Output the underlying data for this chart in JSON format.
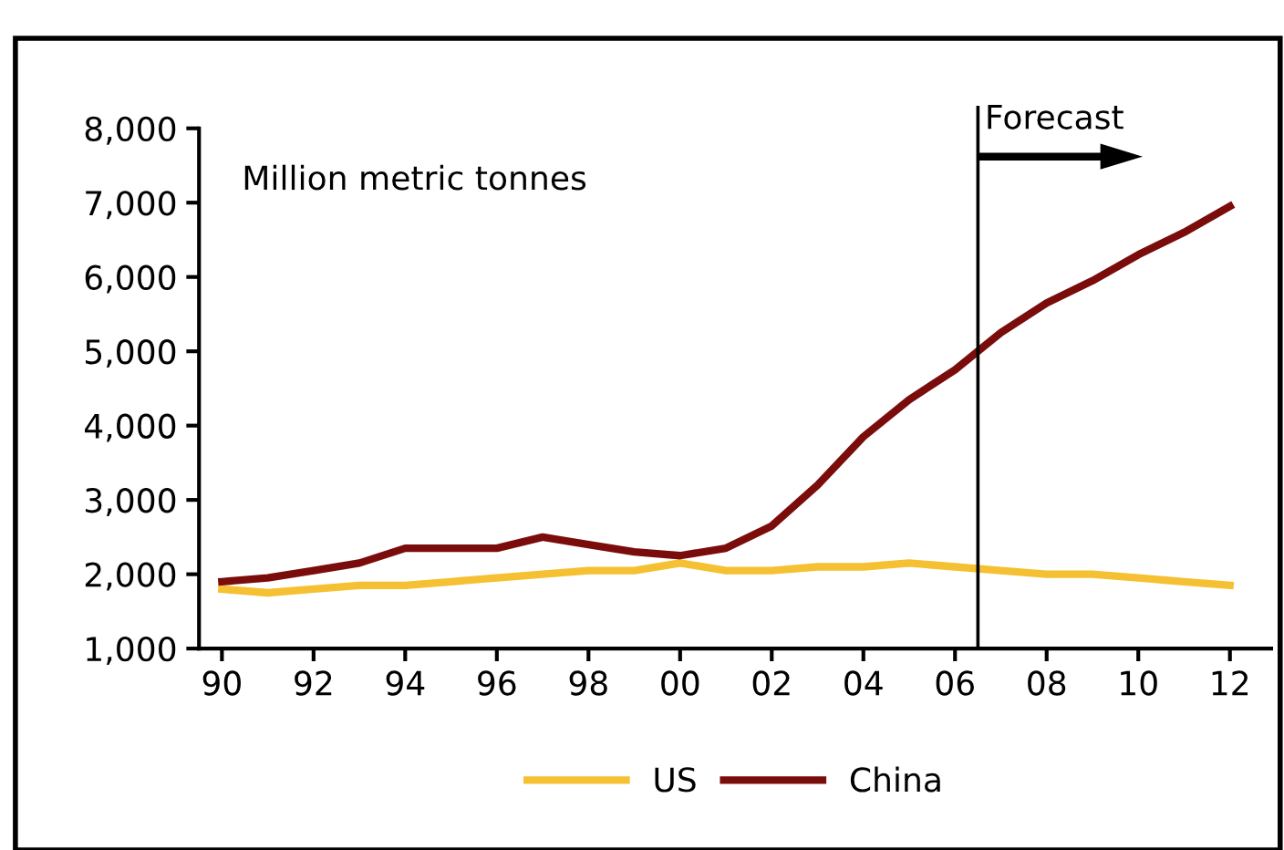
{
  "chart_data": {
    "type": "line",
    "x": [
      1990,
      1991,
      1992,
      1993,
      1994,
      1995,
      1996,
      1997,
      1998,
      1999,
      2000,
      2001,
      2002,
      2003,
      2004,
      2005,
      2006,
      2007,
      2008,
      2009,
      2010,
      2011,
      2012
    ],
    "series": [
      {
        "name": "US",
        "color": "#f5c031",
        "values": [
          1800,
          1750,
          1800,
          1850,
          1850,
          1900,
          1950,
          2000,
          2050,
          2050,
          2150,
          2050,
          2050,
          2100,
          2100,
          2150,
          2100,
          2050,
          2000,
          2000,
          1950,
          1900,
          1850
        ]
      },
      {
        "name": "China",
        "color": "#7b0c0c",
        "values": [
          1900,
          1950,
          2050,
          2150,
          2350,
          2350,
          2350,
          2500,
          2400,
          2300,
          2250,
          2350,
          2650,
          3200,
          3850,
          4350,
          4750,
          5250,
          5650,
          5950,
          6300,
          6600,
          6950
        ]
      }
    ],
    "xlim": [
      1989.5,
      2012.9
    ],
    "xticks": [
      {
        "value": 1990,
        "label": "90"
      },
      {
        "value": 1992,
        "label": "92"
      },
      {
        "value": 1994,
        "label": "94"
      },
      {
        "value": 1996,
        "label": "96"
      },
      {
        "value": 1998,
        "label": "98"
      },
      {
        "value": 2000,
        "label": "00"
      },
      {
        "value": 2002,
        "label": "02"
      },
      {
        "value": 2004,
        "label": "04"
      },
      {
        "value": 2006,
        "label": "06"
      },
      {
        "value": 2008,
        "label": "08"
      },
      {
        "value": 2010,
        "label": "10"
      },
      {
        "value": 2012,
        "label": "12"
      }
    ],
    "ylim": [
      1000,
      8000
    ],
    "yticks": [
      {
        "value": 1000,
        "label": "1,000"
      },
      {
        "value": 2000,
        "label": "2,000"
      },
      {
        "value": 3000,
        "label": "3,000"
      },
      {
        "value": 4000,
        "label": "4,000"
      },
      {
        "value": 5000,
        "label": "5,000"
      },
      {
        "value": 6000,
        "label": "6,000"
      },
      {
        "value": 7000,
        "label": "7,000"
      },
      {
        "value": 8000,
        "label": "8,000"
      }
    ],
    "ref_lines": [
      {
        "axis": "x",
        "value": 2006.5,
        "label": "Forecast",
        "color": "#000000"
      }
    ],
    "annotations": [
      "Million metric tonnes"
    ],
    "grid": false,
    "legend": "bottom",
    "marker": "none",
    "line_style": "solid"
  }
}
